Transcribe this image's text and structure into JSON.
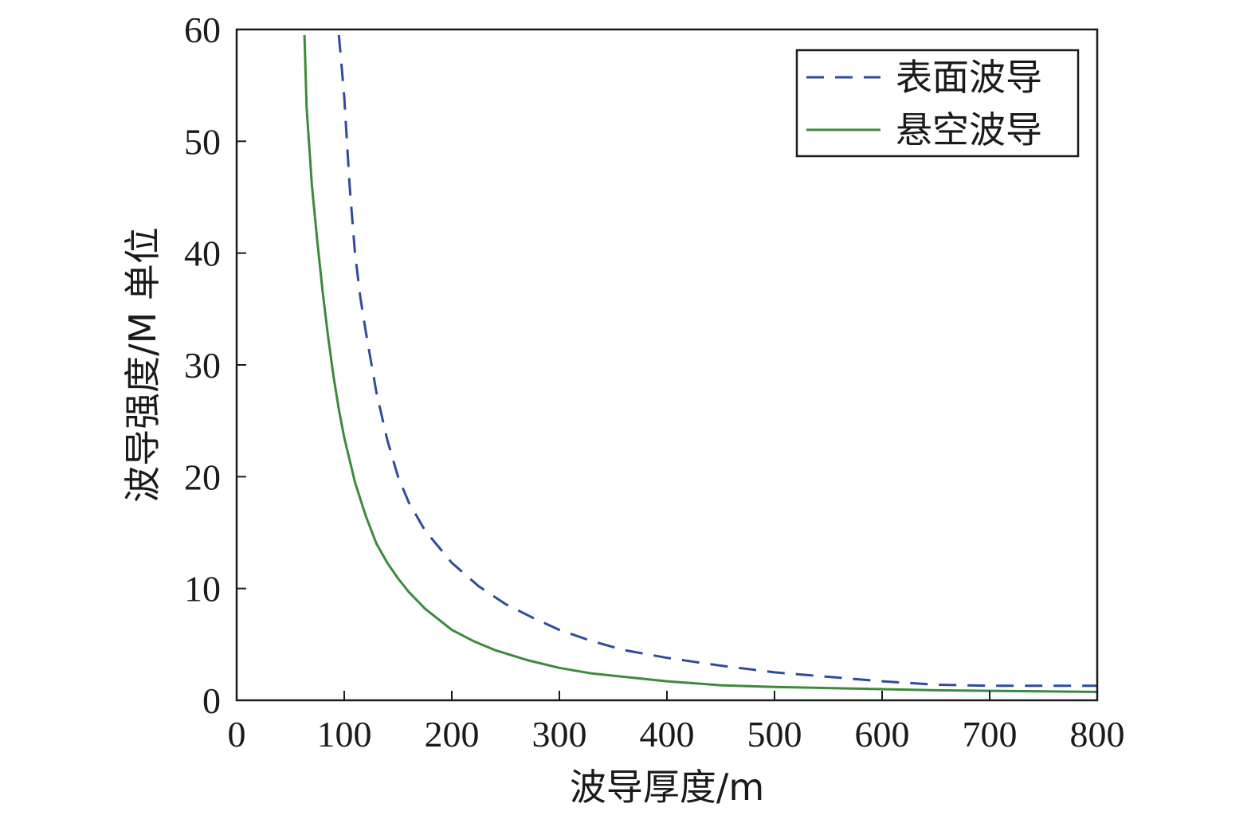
{
  "chart_data": {
    "type": "line",
    "title": "",
    "xlabel": "波导厚度/m",
    "ylabel": "波导强度/M 单位",
    "xlim": [
      0,
      800
    ],
    "ylim": [
      0,
      60
    ],
    "xticks": [
      0,
      100,
      200,
      300,
      400,
      500,
      600,
      700,
      800
    ],
    "yticks": [
      0,
      10,
      20,
      30,
      40,
      50,
      60
    ],
    "grid": false,
    "legend_position": "top-right",
    "series": [
      {
        "name": "表面波导",
        "style": "dashed",
        "color": "#2f4b9c",
        "x": [
          95,
          100,
          105,
          110,
          115,
          120,
          130,
          140,
          150,
          160,
          175,
          200,
          225,
          250,
          275,
          300,
          330,
          360,
          400,
          450,
          500,
          550,
          600,
          650,
          700,
          750,
          800
        ],
        "y": [
          59.5,
          54,
          46,
          40,
          36,
          33,
          27.5,
          23.3,
          20,
          17.7,
          15.2,
          12.3,
          10.2,
          8.6,
          7.4,
          6.3,
          5.3,
          4.5,
          3.8,
          3.1,
          2.5,
          2.1,
          1.7,
          1.4,
          1.3,
          1.3,
          1.3
        ]
      },
      {
        "name": "悬空波导",
        "style": "solid",
        "color": "#3c8a3c",
        "x": [
          63,
          65,
          70,
          75,
          80,
          85,
          90,
          95,
          100,
          110,
          120,
          130,
          140,
          150,
          160,
          175,
          200,
          220,
          240,
          270,
          300,
          330,
          360,
          400,
          450,
          500,
          550,
          600,
          650,
          700,
          750,
          800
        ],
        "y": [
          59.5,
          53,
          46,
          41,
          36.5,
          32.5,
          29,
          26,
          23.5,
          19.5,
          16.5,
          14,
          12.3,
          10.9,
          9.7,
          8.2,
          6.3,
          5.3,
          4.5,
          3.6,
          2.9,
          2.4,
          2.1,
          1.7,
          1.35,
          1.2,
          1.1,
          1.0,
          0.9,
          0.85,
          0.8,
          0.75
        ]
      }
    ]
  }
}
